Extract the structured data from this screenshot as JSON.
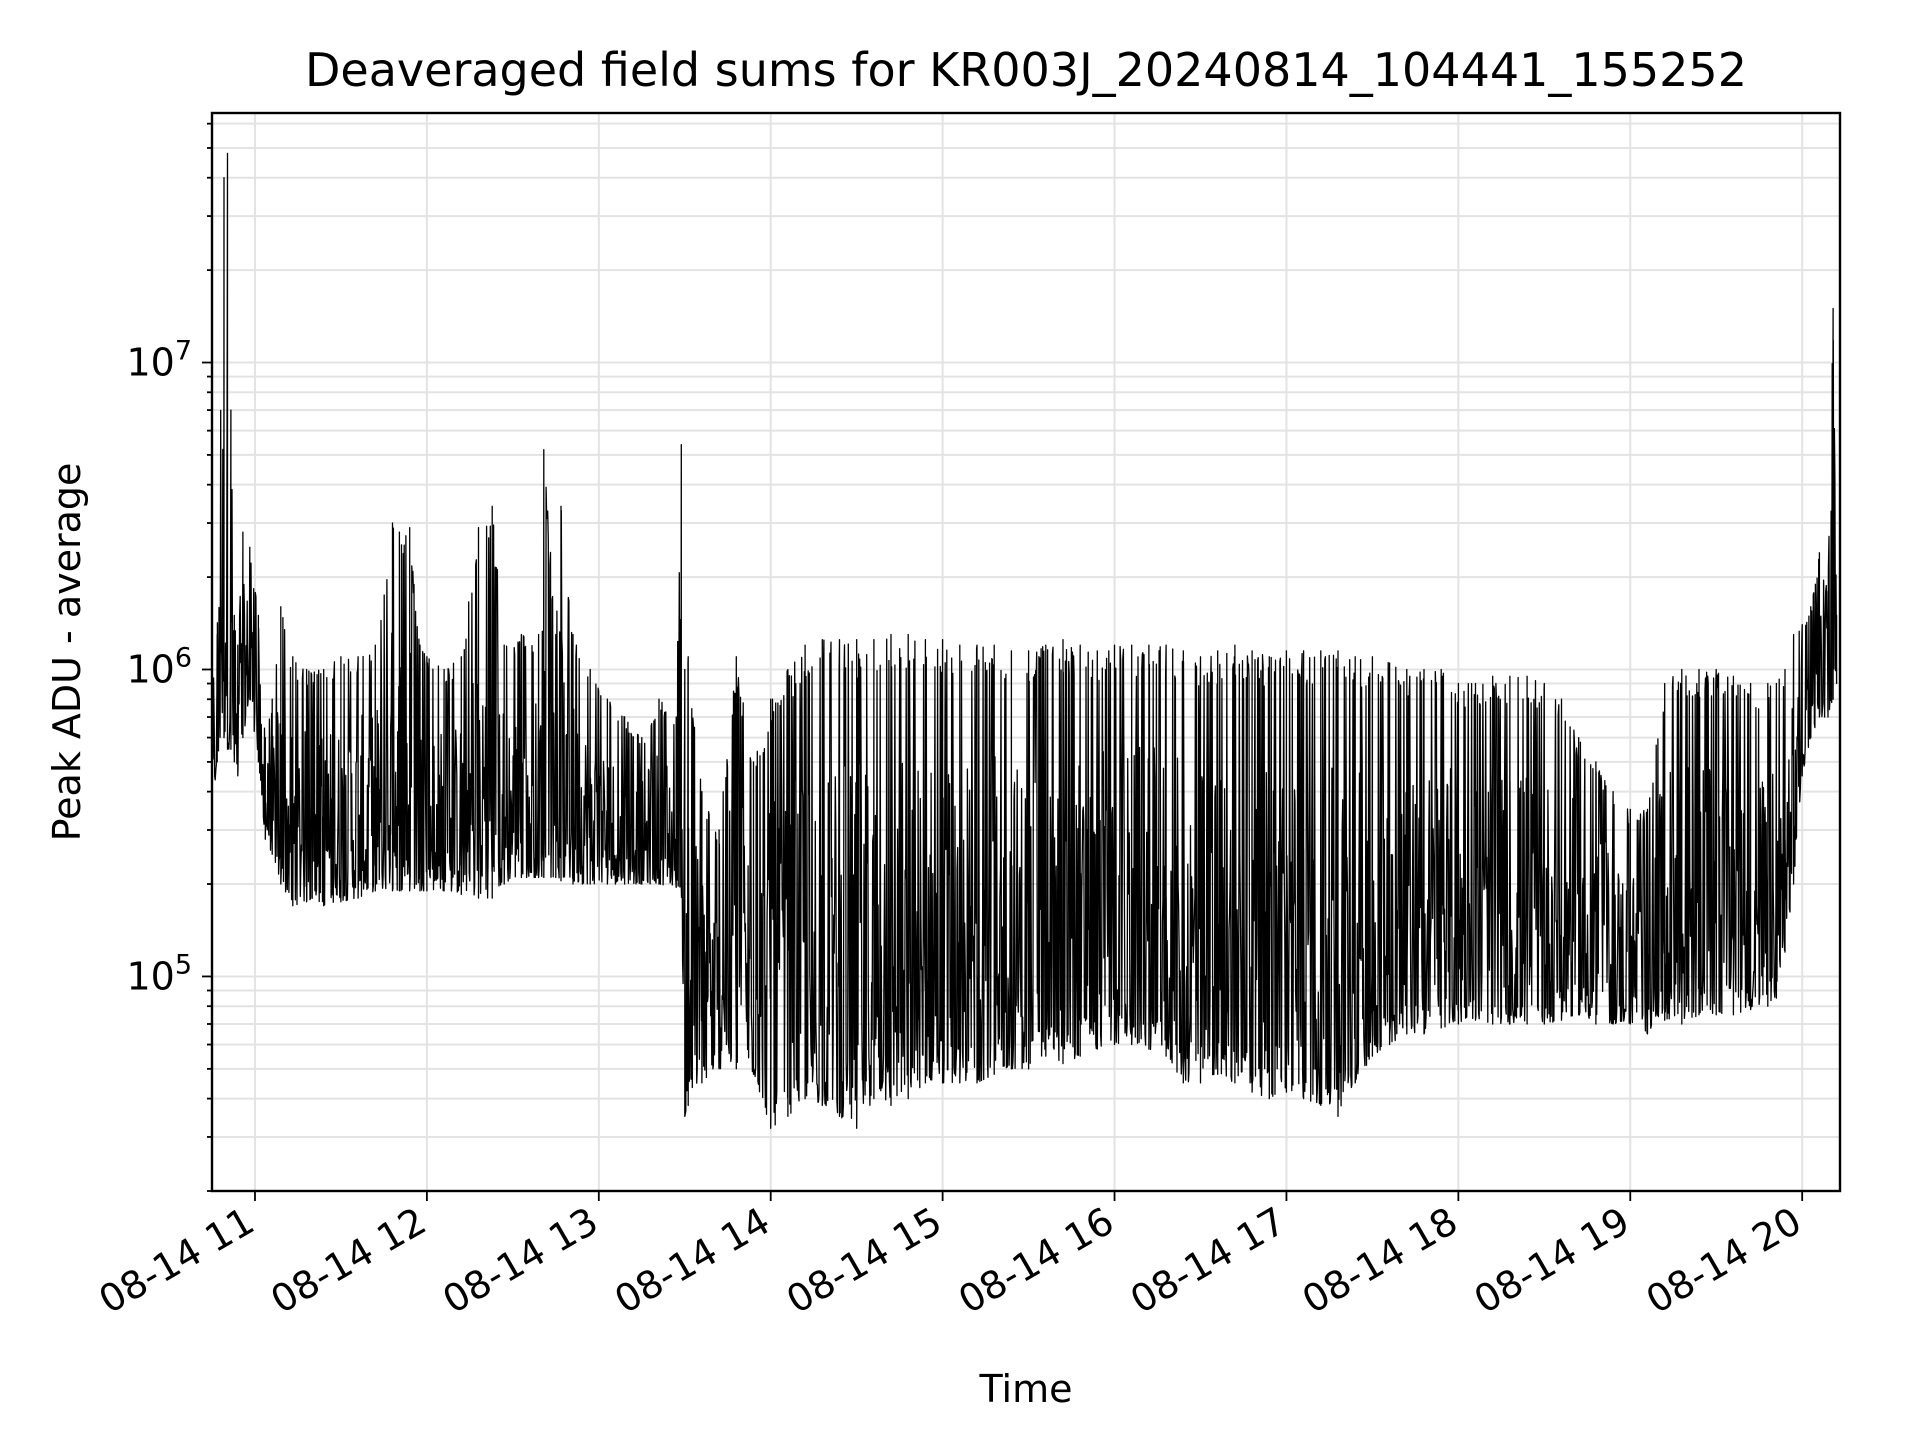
{
  "chart_data": {
    "type": "line",
    "title": "Deaveraged field sums for KR003J_20240814_104441_155252",
    "xlabel": "Time",
    "ylabel": "Peak ADU - average",
    "x_range_hours": [
      10.75,
      20.22
    ],
    "y_scale": "log",
    "ylim": [
      20000,
      65000000
    ],
    "grid": true,
    "line_color": "#000000",
    "x_ticks": [
      {
        "hour": 11,
        "label": "08-14 11"
      },
      {
        "hour": 12,
        "label": "08-14 12"
      },
      {
        "hour": 13,
        "label": "08-14 13"
      },
      {
        "hour": 14,
        "label": "08-14 14"
      },
      {
        "hour": 15,
        "label": "08-14 15"
      },
      {
        "hour": 16,
        "label": "08-14 16"
      },
      {
        "hour": 17,
        "label": "08-14 17"
      },
      {
        "hour": 18,
        "label": "08-14 18"
      },
      {
        "hour": 19,
        "label": "08-14 19"
      },
      {
        "hour": 20,
        "label": "08-14 20"
      }
    ],
    "y_ticks": [
      {
        "value": 100000,
        "base": "10",
        "exp": "5"
      },
      {
        "value": 1000000,
        "base": "10",
        "exp": "6"
      },
      {
        "value": 10000000,
        "base": "10",
        "exp": "7"
      }
    ],
    "series": [
      {
        "x": [
          10.75,
          10.78,
          10.82,
          10.84,
          10.86,
          10.88,
          10.9,
          10.93,
          10.97,
          11.02,
          11.06,
          11.1,
          11.15,
          11.22,
          11.3,
          11.4,
          11.5,
          11.6,
          11.7,
          11.8,
          11.84,
          11.9,
          11.96,
          12.0,
          12.1,
          12.2,
          12.3,
          12.38,
          12.45,
          12.55,
          12.65,
          12.68,
          12.75,
          12.78,
          12.85,
          12.95,
          13.05,
          13.15,
          13.25,
          13.35,
          13.45,
          13.48,
          13.5,
          13.52,
          13.6,
          13.7,
          13.8,
          13.9,
          14.0,
          14.1,
          14.2,
          14.3,
          14.4,
          14.5,
          14.6,
          14.7,
          14.8,
          14.9,
          15.0,
          15.1,
          15.2,
          15.3,
          15.4,
          15.5,
          15.6,
          15.7,
          15.8,
          15.9,
          16.0,
          16.1,
          16.2,
          16.3,
          16.4,
          16.5,
          16.6,
          16.7,
          16.8,
          16.9,
          17.0,
          17.1,
          17.2,
          17.3,
          17.4,
          17.5,
          17.6,
          17.7,
          17.8,
          17.9,
          18.0,
          18.1,
          18.2,
          18.3,
          18.4,
          18.5,
          18.6,
          18.7,
          18.8,
          18.9,
          19.0,
          19.1,
          19.2,
          19.3,
          19.4,
          19.5,
          19.6,
          19.7,
          19.8,
          19.85,
          19.9,
          19.95,
          20.0,
          20.05,
          20.1,
          20.15,
          20.18,
          20.2
        ],
        "low": [
          300000,
          500000,
          600000,
          550000,
          550000,
          500000,
          450000,
          600000,
          800000,
          500000,
          280000,
          250000,
          200000,
          170000,
          175000,
          170000,
          175000,
          180000,
          190000,
          190000,
          190000,
          190000,
          190000,
          190000,
          190000,
          185000,
          180000,
          180000,
          200000,
          210000,
          210000,
          210000,
          210000,
          205000,
          200000,
          200000,
          200000,
          200000,
          200000,
          200000,
          195000,
          195000,
          35000,
          38000,
          45000,
          50000,
          50000,
          48000,
          32000,
          35000,
          40000,
          38000,
          35000,
          32000,
          40000,
          38000,
          40000,
          45000,
          45000,
          45000,
          45000,
          48000,
          50000,
          50000,
          55000,
          52000,
          55000,
          58000,
          60000,
          60000,
          58000,
          55000,
          45000,
          45000,
          48000,
          45000,
          42000,
          40000,
          42000,
          40000,
          38000,
          35000,
          45000,
          55000,
          60000,
          65000,
          65000,
          68000,
          70000,
          72000,
          70000,
          70000,
          70000,
          70000,
          72000,
          75000,
          70000,
          70000,
          70000,
          65000,
          72000,
          70000,
          75000,
          75000,
          75000,
          78000,
          80000,
          85000,
          120000,
          200000,
          450000,
          600000,
          700000,
          700000,
          800000,
          900000
        ],
        "high": [
          900000,
          1300000,
          40000000,
          48000000,
          7000000,
          1500000,
          1200000,
          2800000,
          2500000,
          1500000,
          600000,
          800000,
          1600000,
          1100000,
          1000000,
          1000000,
          1100000,
          1100000,
          1200000,
          3000000,
          2800000,
          2900000,
          1200000,
          1100000,
          1000000,
          1100000,
          2900000,
          3400000,
          1200000,
          1300000,
          1300000,
          5200000,
          1300000,
          3400000,
          1300000,
          1000000,
          800000,
          700000,
          600000,
          800000,
          700000,
          5400000,
          1000000,
          1100000,
          400000,
          300000,
          1100000,
          500000,
          800000,
          1000000,
          1200000,
          1250000,
          1250000,
          1250000,
          1250000,
          1300000,
          1300000,
          1250000,
          1250000,
          1200000,
          1200000,
          1200000,
          1150000,
          1150000,
          1200000,
          1250000,
          1200000,
          1150000,
          1200000,
          1200000,
          1200000,
          1200000,
          1150000,
          1100000,
          1150000,
          1200000,
          1150000,
          1100000,
          1150000,
          1150000,
          1150000,
          1150000,
          1100000,
          1100000,
          1050000,
          1000000,
          1000000,
          1000000,
          900000,
          900000,
          950000,
          950000,
          950000,
          900000,
          800000,
          600000,
          500000,
          400000,
          350000,
          350000,
          900000,
          1000000,
          1000000,
          1000000,
          950000,
          900000,
          900000,
          900000,
          1000000,
          1300000,
          1400000,
          1600000,
          2400000,
          1800000,
          15000000,
          1500000
        ]
      }
    ]
  }
}
